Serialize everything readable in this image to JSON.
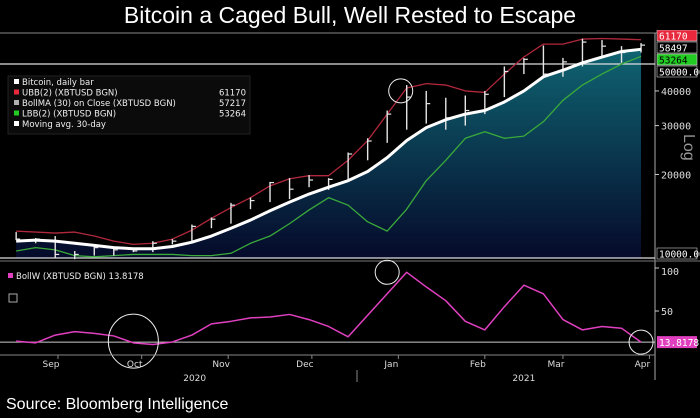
{
  "title": "Bitcoin a Caged Bull, Well Rested to Escape",
  "source": "Source: Bloomberg Intelligence",
  "chart_data": [
    {
      "type": "bar",
      "panel": "price",
      "scale": "log",
      "ylabel": "Log",
      "ylim": [
        10000,
        64000
      ],
      "yticks": [
        20000,
        30000,
        40000
      ],
      "reference_lines": [
        {
          "value": 50000,
          "label": "50000.00"
        },
        {
          "value": 10000,
          "label": "10000.00"
        }
      ],
      "legend": {
        "placement": "top-left",
        "entries": [
          {
            "name": "Bitcoin, daily bar",
            "color": "#ffffff",
            "value": ""
          },
          {
            "name": "UBB(2) (XBTUSD BGN)",
            "color": "#e8283c",
            "value": "61170"
          },
          {
            "name": "BollMA (30)  on Close (XBTUSD BGN)",
            "color": "#b0b0b0",
            "value": "57217"
          },
          {
            "name": "LBB(2) (XBTUSD BGN)",
            "color": "#22cc22",
            "value": "53264"
          },
          {
            "name": "Moving avg. 30-day",
            "color": "#ffffff",
            "value": ""
          }
        ]
      },
      "last_value_labels": [
        {
          "value": "61170",
          "color": "#e8283c"
        },
        {
          "value": "58497",
          "color": "#ffffff"
        },
        {
          "value": "53264",
          "color": "#22cc22"
        }
      ],
      "colors": {
        "ubb": "#b0283c",
        "lbb": "#3aaa3a",
        "ma": "#ffffff",
        "bars": "#e6e6e6",
        "fill_top": "#0f6472",
        "fill_bottom": "#050a2a"
      },
      "x": [
        "2020-08-17",
        "2020-08-24",
        "2020-08-31",
        "2020-09-07",
        "2020-09-14",
        "2020-09-21",
        "2020-09-28",
        "2020-10-05",
        "2020-10-12",
        "2020-10-19",
        "2020-10-26",
        "2020-11-02",
        "2020-11-09",
        "2020-11-16",
        "2020-11-23",
        "2020-11-30",
        "2020-12-07",
        "2020-12-14",
        "2020-12-21",
        "2020-12-28",
        "2021-01-04",
        "2021-01-11",
        "2021-01-18",
        "2021-01-25",
        "2021-02-01",
        "2021-02-08",
        "2021-02-15",
        "2021-02-22",
        "2021-03-01",
        "2021-03-08",
        "2021-03-15",
        "2021-03-22",
        "2021-03-29"
      ],
      "series": {
        "high": [
          12400,
          11800,
          12000,
          10600,
          11100,
          10900,
          10900,
          11500,
          11700,
          13200,
          14000,
          15800,
          16500,
          18800,
          19400,
          19900,
          19400,
          24000,
          27000,
          34000,
          42000,
          40000,
          37800,
          38500,
          40000,
          49000,
          52500,
          58300,
          52600,
          61700,
          61000,
          58000,
          59500
        ],
        "low": [
          11600,
          11300,
          10000,
          9900,
          10200,
          10200,
          10500,
          10500,
          11200,
          11300,
          12800,
          13300,
          15000,
          15900,
          16300,
          18000,
          17600,
          19000,
          22500,
          26000,
          29000,
          30500,
          29000,
          30000,
          33000,
          38000,
          46000,
          45000,
          45000,
          49000,
          53000,
          50500,
          55000
        ],
        "close": [
          11700,
          11700,
          10300,
          10300,
          10900,
          10700,
          10600,
          11300,
          11500,
          13000,
          13800,
          15500,
          16100,
          18700,
          17700,
          19100,
          19200,
          23700,
          26400,
          33000,
          38000,
          36000,
          32000,
          34000,
          38900,
          47000,
          52000,
          46000,
          50900,
          60000,
          58000,
          55000,
          58497
        ],
        "ma30": [
          11500,
          11600,
          11500,
          11300,
          11100,
          10900,
          10800,
          10800,
          11000,
          11400,
          12000,
          12800,
          13700,
          14800,
          15900,
          17000,
          18000,
          19000,
          20500,
          23000,
          26500,
          29500,
          31500,
          33000,
          34000,
          36500,
          40000,
          45000,
          47500,
          50500,
          53000,
          55500,
          56500
        ],
        "ubb": [
          12500,
          12400,
          12300,
          12400,
          12000,
          11500,
          11200,
          11300,
          11700,
          12600,
          13900,
          15200,
          16500,
          18200,
          19300,
          19800,
          19800,
          22500,
          26500,
          33000,
          41000,
          42500,
          42000,
          40000,
          39500,
          46000,
          53000,
          59000,
          59000,
          61500,
          61800,
          61500,
          61170
        ],
        "lbb": [
          10600,
          10900,
          10700,
          10200,
          10100,
          10200,
          10300,
          10300,
          10300,
          10200,
          10200,
          10400,
          11300,
          12000,
          13300,
          14900,
          16500,
          15500,
          13500,
          12500,
          15000,
          19000,
          22500,
          27000,
          28500,
          27000,
          27500,
          31000,
          37000,
          42000,
          46000,
          50000,
          53264
        ]
      },
      "annotations": [
        {
          "type": "circle",
          "date": "2021-01-04",
          "value": 40000
        }
      ]
    },
    {
      "type": "line",
      "panel": "bandwidth",
      "ylim": [
        0,
        100
      ],
      "yticks": [
        50,
        100
      ],
      "legend": {
        "placement": "top-left",
        "entries": [
          {
            "name": "BollW (XBTUSD BGN) 13.8178",
            "color": "#e040c0"
          }
        ]
      },
      "reference_lines": [
        {
          "value": 13.8178,
          "label": "13.8178"
        }
      ],
      "color": "#e040c0",
      "x": [
        "2020-08-17",
        "2020-08-24",
        "2020-08-31",
        "2020-09-07",
        "2020-09-14",
        "2020-09-21",
        "2020-09-28",
        "2020-10-05",
        "2020-10-12",
        "2020-10-19",
        "2020-10-26",
        "2020-11-02",
        "2020-11-09",
        "2020-11-16",
        "2020-11-23",
        "2020-11-30",
        "2020-12-07",
        "2020-12-14",
        "2020-12-21",
        "2020-12-28",
        "2021-01-04",
        "2021-01-11",
        "2021-01-18",
        "2021-01-25",
        "2021-02-01",
        "2021-02-08",
        "2021-02-15",
        "2021-02-22",
        "2021-03-01",
        "2021-03-08",
        "2021-03-15",
        "2021-03-22",
        "2021-03-29"
      ],
      "values": [
        15,
        13,
        22,
        26,
        24,
        21,
        13,
        11,
        14,
        22,
        35,
        38,
        42,
        43,
        46,
        40,
        32,
        20,
        45,
        70,
        95,
        78,
        62,
        38,
        28,
        55,
        80,
        70,
        40,
        28,
        32,
        30,
        13.8178
      ],
      "annotations": [
        {
          "type": "circle",
          "date": "2020-09-28",
          "value": 15
        },
        {
          "type": "circle",
          "date": "2020-12-28",
          "value": 95
        },
        {
          "type": "circle",
          "date": "2021-03-29",
          "value": 13.8
        }
      ]
    }
  ],
  "x_axis": {
    "months": [
      {
        "label": "Sep",
        "date": "2020-09-01"
      },
      {
        "label": "Oct",
        "date": "2020-10-01"
      },
      {
        "label": "Nov",
        "date": "2020-11-01"
      },
      {
        "label": "Dec",
        "date": "2020-12-01"
      },
      {
        "label": "Jan",
        "date": "2021-01-01"
      },
      {
        "label": "Feb",
        "date": "2021-02-01"
      },
      {
        "label": "Mar",
        "date": "2021-03-01"
      },
      {
        "label": "Apr",
        "date": "2021-04-01"
      }
    ],
    "years": [
      {
        "label": "2020",
        "date": "2020-10-20"
      },
      {
        "label": "2021",
        "date": "2021-02-15"
      }
    ],
    "range": [
      "2020-08-13",
      "2021-04-03"
    ]
  }
}
